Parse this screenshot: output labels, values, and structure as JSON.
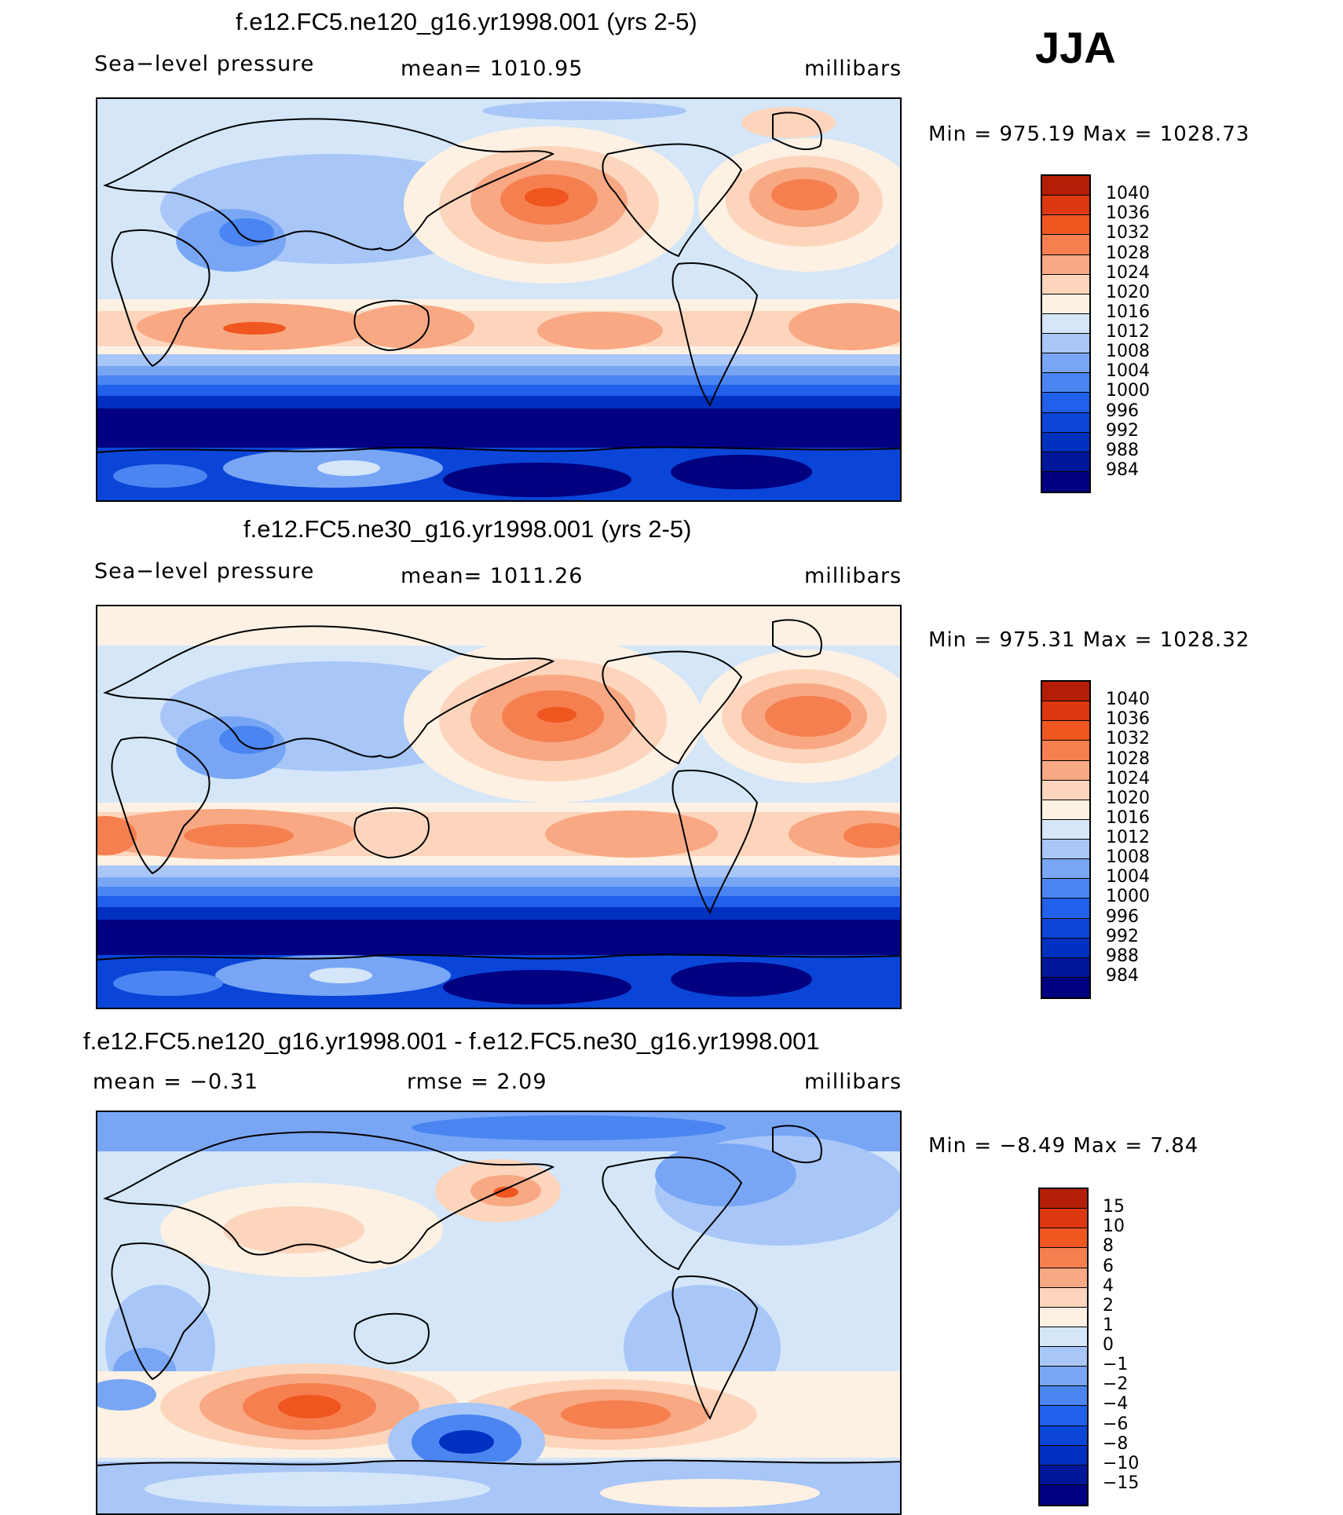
{
  "season": "JJA",
  "palettes": {
    "abs": [
      "#000080",
      "#00179c",
      "#0030c0",
      "#0a45d8",
      "#2060ea",
      "#4a85f2",
      "#78a6f5",
      "#a8c6f7",
      "#d4e6f8",
      "#fdf1e3",
      "#fcd5bc",
      "#f8a883",
      "#f67f4f",
      "#f0561f",
      "#dd3810",
      "#b51e06",
      "#820000"
    ],
    "diff": [
      "#000080",
      "#00179c",
      "#0030c0",
      "#0a45d8",
      "#2060ea",
      "#4a85f2",
      "#78a6f5",
      "#a8c6f7",
      "#d4e6f8",
      "#fdf1e3",
      "#fcd5bc",
      "#f8a883",
      "#f67f4f",
      "#f0561f",
      "#dd3810",
      "#b51e06",
      "#820000"
    ]
  },
  "panels": [
    {
      "title": "f.e12.FC5.ne120_g16.yr1998.001 (yrs 2-5)",
      "left_label": "Sea−level  pressure",
      "center_label": "mean=  1010.95",
      "right_label": "millibars",
      "minmax": "Min  =  975.19  Max  =  1028.73",
      "colorbar_labels": [
        "1040",
        "1036",
        "1032",
        "1028",
        "1024",
        "1020",
        "1016",
        "1012",
        "1008",
        "1004",
        "1000",
        "996",
        "992",
        "988",
        "984"
      ]
    },
    {
      "title": "f.e12.FC5.ne30_g16.yr1998.001 (yrs 2-5)",
      "left_label": "Sea−level  pressure",
      "center_label": "mean=  1011.26",
      "right_label": "millibars",
      "minmax": "Min  =  975.31  Max  =  1028.32",
      "colorbar_labels": [
        "1040",
        "1036",
        "1032",
        "1028",
        "1024",
        "1020",
        "1016",
        "1012",
        "1008",
        "1004",
        "1000",
        "996",
        "992",
        "988",
        "984"
      ]
    },
    {
      "title": "f.e12.FC5.ne120_g16.yr1998.001 - f.e12.FC5.ne30_g16.yr1998.001",
      "left_label": "mean  =    −0.31",
      "center_label": "rmse  =      2.09",
      "right_label": "millibars",
      "minmax": "Min  =     −8.49  Max  =      7.84",
      "colorbar_labels": [
        "15",
        "10",
        "8",
        "6",
        "4",
        "2",
        "1",
        "0",
        "−1",
        "−2",
        "−4",
        "−6",
        "−8",
        "−10",
        "−15"
      ]
    }
  ],
  "chart_data": [
    {
      "type": "heatmap",
      "title": "f.e12.FC5.ne120_g16.yr1998.001 (yrs 2-5)",
      "variable": "Sea-level pressure",
      "units": "millibars",
      "mean": 1010.95,
      "min": 975.19,
      "max": 1028.73,
      "contour_levels": [
        984,
        988,
        992,
        996,
        1000,
        1004,
        1008,
        1012,
        1016,
        1020,
        1024,
        1028,
        1032,
        1036,
        1040
      ]
    },
    {
      "type": "heatmap",
      "title": "f.e12.FC5.ne30_g16.yr1998.001 (yrs 2-5)",
      "variable": "Sea-level pressure",
      "units": "millibars",
      "mean": 1011.26,
      "min": 975.31,
      "max": 1028.32,
      "contour_levels": [
        984,
        988,
        992,
        996,
        1000,
        1004,
        1008,
        1012,
        1016,
        1020,
        1024,
        1028,
        1032,
        1036,
        1040
      ]
    },
    {
      "type": "heatmap",
      "title": "f.e12.FC5.ne120_g16.yr1998.001 - f.e12.FC5.ne30_g16.yr1998.001",
      "units": "millibars",
      "mean": -0.31,
      "rmse": 2.09,
      "min": -8.49,
      "max": 7.84,
      "contour_levels": [
        -15,
        -10,
        -8,
        -6,
        -4,
        -2,
        -1,
        0,
        1,
        2,
        4,
        6,
        8,
        10,
        15
      ]
    }
  ]
}
